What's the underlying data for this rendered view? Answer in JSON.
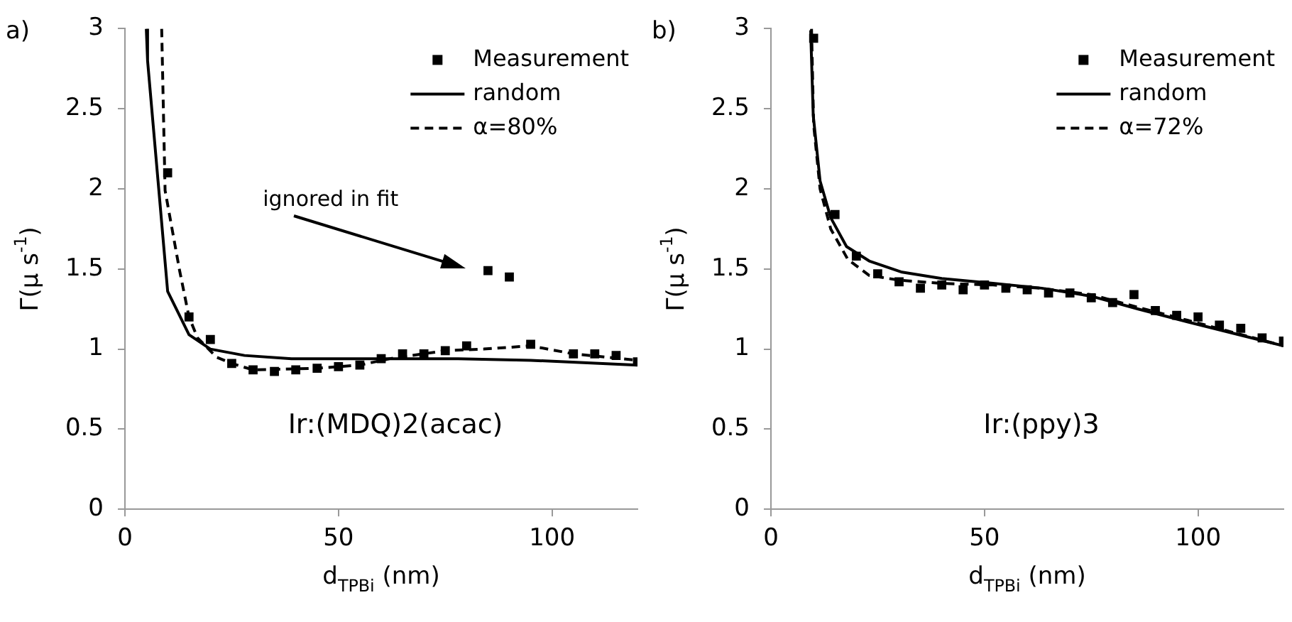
{
  "chart_data": [
    {
      "type": "scatter",
      "title": "a)",
      "xlabel": "d$_{TPBi}$ (nm)",
      "ylabel": "Γ(μ s$^{-1}$)",
      "xlim": [
        0,
        120
      ],
      "xticks": [
        0,
        50,
        100
      ],
      "ylim": [
        0,
        3
      ],
      "yticks": [
        0,
        0.5,
        1,
        1.5,
        2,
        2.5,
        3
      ],
      "grid": false,
      "legend": "top right",
      "annotations": [
        "Ir:(MDQ)2(acac)",
        "ignored in fit"
      ],
      "series": [
        {
          "name": "Measurement",
          "type": "scatter",
          "marker": "square",
          "color": "#000000",
          "x": [
            10,
            15,
            20,
            25,
            30,
            35,
            40,
            45,
            50,
            55,
            60,
            65,
            70,
            75,
            80,
            85,
            90,
            95,
            105,
            110,
            115,
            120
          ],
          "values": [
            2.1,
            1.2,
            1.06,
            0.91,
            0.87,
            0.86,
            0.87,
            0.88,
            0.89,
            0.9,
            0.94,
            0.97,
            0.97,
            0.99,
            1.02,
            1.49,
            1.45,
            1.03,
            0.97,
            0.97,
            0.96,
            0.92
          ]
        },
        {
          "name": "random",
          "type": "line",
          "marker": "none",
          "line_style": "solid",
          "color": "#000000",
          "x": [
            5,
            5.3,
            10,
            15,
            20,
            28,
            39,
            50,
            62,
            78,
            95,
            120
          ],
          "values": [
            3,
            2.8,
            1.36,
            1.09,
            1.0,
            0.96,
            0.94,
            0.94,
            0.94,
            0.94,
            0.93,
            0.9
          ]
        },
        {
          "name": "α=80%",
          "type": "line",
          "marker": "none",
          "line_style": "dashed",
          "color": "#000000",
          "x": [
            8.6,
            9.4,
            12.8,
            15,
            17,
            21.4,
            25,
            30,
            45,
            55,
            62,
            75,
            84,
            95,
            105,
            120
          ],
          "values": [
            3,
            1.99,
            1.49,
            1.2,
            1.07,
            0.95,
            0.91,
            0.87,
            0.88,
            0.9,
            0.94,
            0.99,
            1.0,
            1.02,
            0.97,
            0.93
          ]
        }
      ]
    },
    {
      "type": "scatter",
      "title": "b)",
      "xlabel": "d$_{TPBi}$ (nm)",
      "ylabel": "Γ(μ s$^{-1}$)",
      "xlim": [
        0,
        120
      ],
      "xticks": [
        0,
        50,
        100
      ],
      "ylim": [
        0,
        3
      ],
      "yticks": [
        0,
        0.5,
        1,
        1.5,
        2,
        2.5,
        3
      ],
      "grid": false,
      "legend": "top right",
      "annotations": [
        "Ir:(ppy)3"
      ],
      "series": [
        {
          "name": "Measurement",
          "type": "scatter",
          "marker": "square",
          "color": "#000000",
          "x": [
            10,
            15,
            20,
            25,
            30,
            35,
            40,
            45,
            50,
            55,
            60,
            65,
            70,
            75,
            80,
            85,
            90,
            95,
            100,
            105,
            110,
            115,
            120
          ],
          "values": [
            2.94,
            1.84,
            1.58,
            1.47,
            1.42,
            1.38,
            1.4,
            1.37,
            1.4,
            1.38,
            1.37,
            1.35,
            1.35,
            1.32,
            1.29,
            1.34,
            1.24,
            1.21,
            1.2,
            1.15,
            1.13,
            1.07,
            1.05
          ]
        },
        {
          "name": "random",
          "type": "line",
          "marker": "none",
          "line_style": "solid",
          "color": "#000000",
          "x": [
            9.3,
            9.9,
            11.5,
            14,
            17.7,
            23,
            30.7,
            40,
            52,
            63.4,
            75,
            86,
            97.5,
            120
          ],
          "values": [
            2.99,
            2.46,
            2.05,
            1.82,
            1.64,
            1.55,
            1.48,
            1.44,
            1.41,
            1.38,
            1.33,
            1.25,
            1.17,
            1.02
          ]
        },
        {
          "name": "α=72%",
          "type": "line",
          "marker": "none",
          "line_style": "dashed",
          "color": "#000000",
          "x": [
            9.5,
            10,
            11.5,
            14,
            18,
            23,
            30,
            40,
            52,
            63,
            75,
            86,
            97.5,
            120
          ],
          "values": [
            3,
            2.4,
            2.0,
            1.75,
            1.56,
            1.46,
            1.43,
            1.41,
            1.4,
            1.38,
            1.34,
            1.26,
            1.18,
            1.02
          ]
        }
      ]
    }
  ]
}
